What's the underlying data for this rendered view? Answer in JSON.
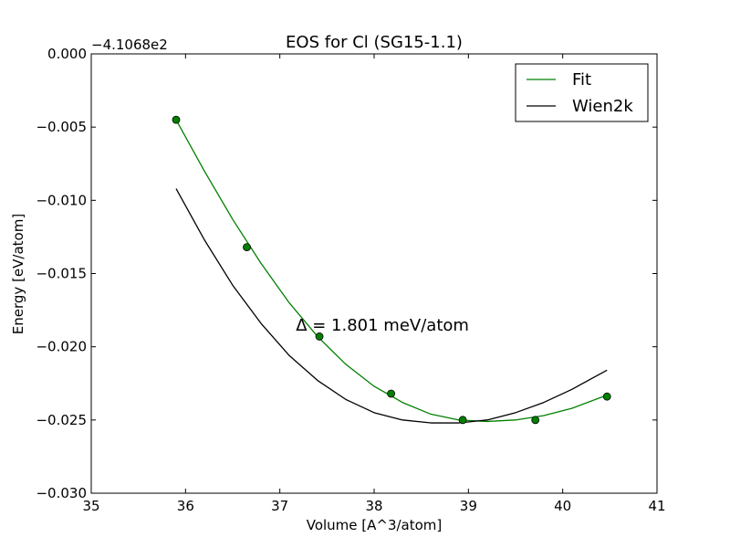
{
  "chart_data": {
    "type": "line",
    "title": "EOS for Cl (SG15-1.1)",
    "xlabel": "Volume [A^3/atom]",
    "ylabel": "Energy [eV/atom]",
    "offset_label": "−4.1068e2",
    "xlim": [
      35,
      41
    ],
    "ylim": [
      -0.03,
      0.0
    ],
    "xticks": [
      35,
      36,
      37,
      38,
      39,
      40,
      41
    ],
    "xtick_labels": [
      "35",
      "36",
      "37",
      "38",
      "39",
      "40",
      "41"
    ],
    "yticks": [
      0.0,
      -0.005,
      -0.01,
      -0.015,
      -0.02,
      -0.025,
      -0.03
    ],
    "ytick_labels": [
      "0.000",
      "−0.005",
      "−0.010",
      "−0.015",
      "−0.020",
      "−0.025",
      "−0.030"
    ],
    "grid": false,
    "legend_position": "top-right",
    "annotation": {
      "text": "Δ = 1.801 meV/atom",
      "x": 37.17,
      "y": -0.0189
    },
    "series": [
      {
        "name": "Fit",
        "kind": "line",
        "color": "#008000",
        "x": [
          35.9,
          36.2,
          36.5,
          36.8,
          37.1,
          37.4,
          37.7,
          38.0,
          38.3,
          38.6,
          38.9,
          39.2,
          39.5,
          39.8,
          40.1,
          40.47
        ],
        "y": [
          -0.0045,
          -0.008,
          -0.0113,
          -0.0143,
          -0.017,
          -0.0193,
          -0.0212,
          -0.0227,
          -0.0238,
          -0.0246,
          -0.025,
          -0.0251,
          -0.025,
          -0.0247,
          -0.0242,
          -0.0233
        ]
      },
      {
        "name": "Wien2k",
        "kind": "line",
        "color": "#000000",
        "x": [
          35.9,
          36.2,
          36.5,
          36.8,
          37.1,
          37.4,
          37.7,
          38.0,
          38.3,
          38.6,
          38.9,
          39.2,
          39.5,
          39.8,
          40.1,
          40.47
        ],
        "y": [
          -0.0092,
          -0.0127,
          -0.0158,
          -0.0184,
          -0.0206,
          -0.0223,
          -0.0236,
          -0.0245,
          -0.025,
          -0.0252,
          -0.0252,
          -0.025,
          -0.0245,
          -0.0238,
          -0.0229,
          -0.0216
        ]
      },
      {
        "name": "",
        "kind": "points",
        "color": "#008000",
        "x": [
          35.9,
          36.65,
          37.42,
          38.18,
          38.94,
          39.71,
          40.47
        ],
        "y": [
          -0.0045,
          -0.0132,
          -0.0193,
          -0.0232,
          -0.025,
          -0.025,
          -0.0234
        ]
      }
    ]
  }
}
